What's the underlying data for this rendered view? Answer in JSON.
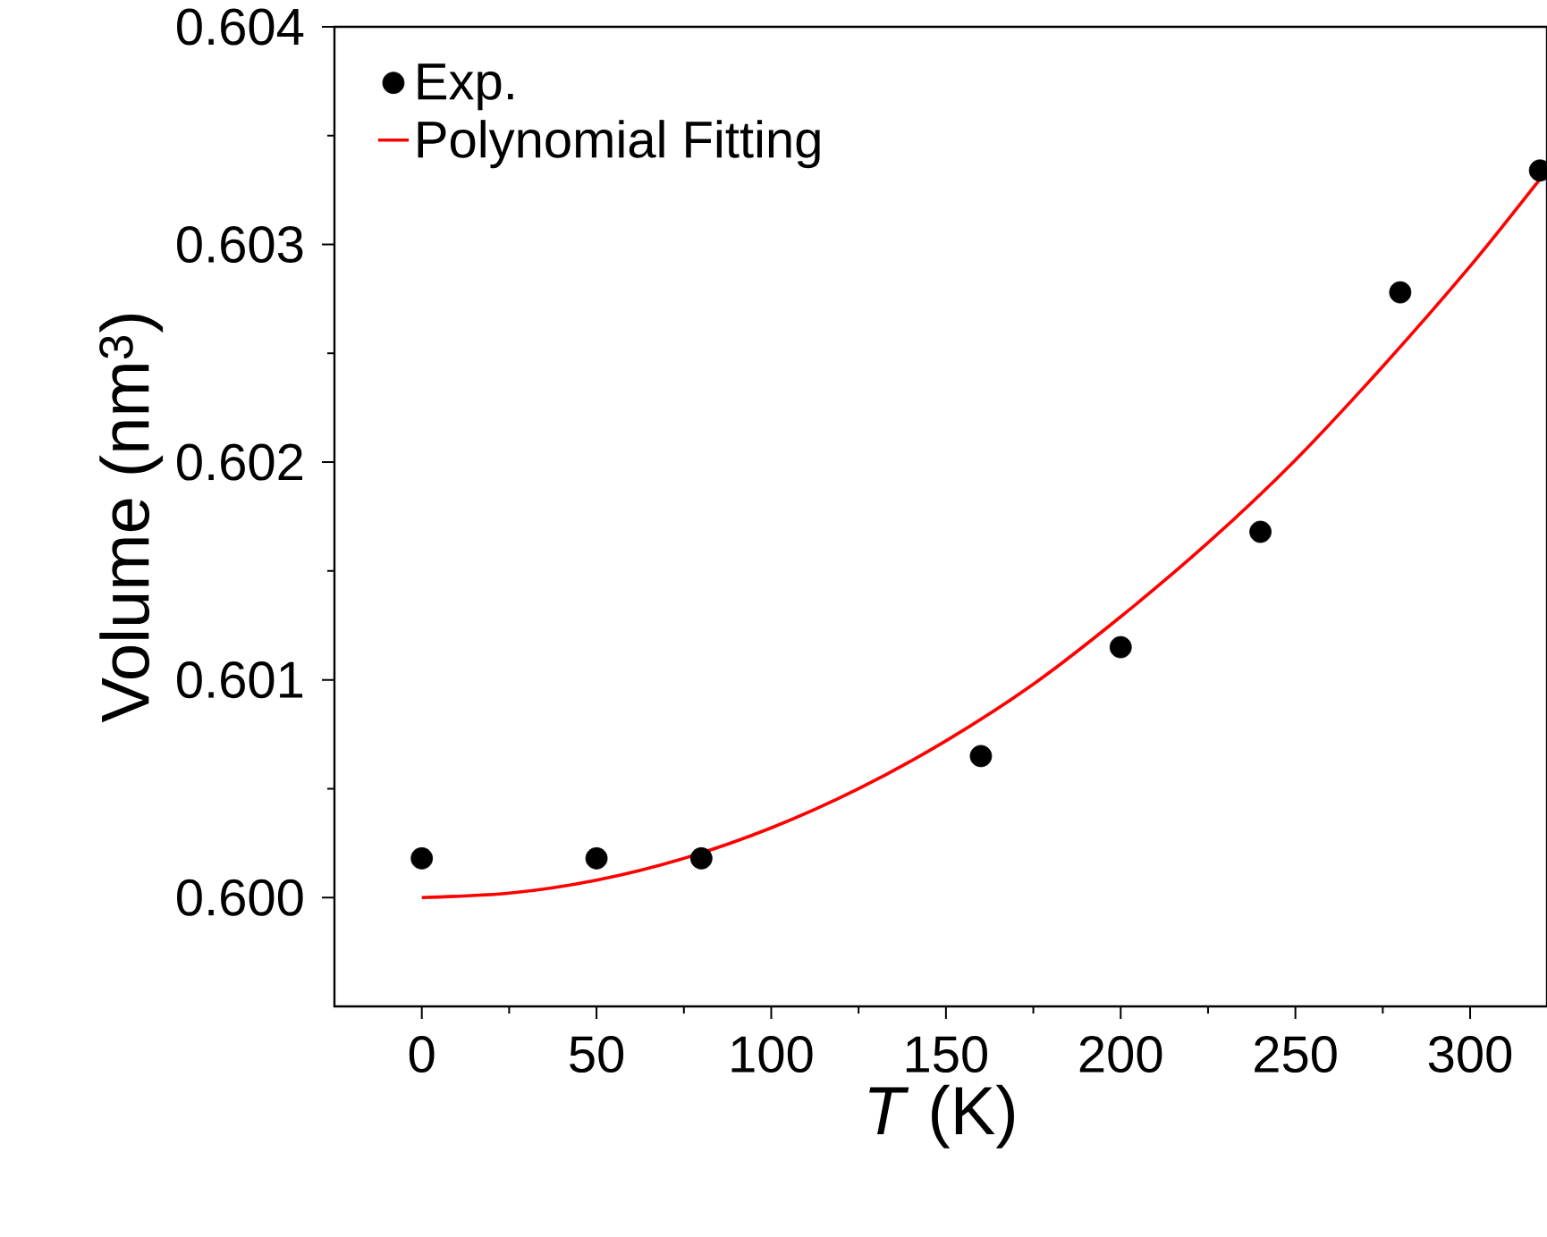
{
  "chart_data": {
    "type": "scatter",
    "xlabel": "*T* (K)",
    "ylabel": "Volume (nm$^{3}$)",
    "xlim": [
      -25,
      322
    ],
    "ylim": [
      0.5995,
      0.604
    ],
    "xticks": [
      0,
      50,
      100,
      150,
      200,
      250,
      300
    ],
    "yticks": [
      {
        "value": 0.6,
        "label": "0.600"
      },
      {
        "value": 0.601,
        "label": "0.601"
      },
      {
        "value": 0.602,
        "label": "0.602"
      },
      {
        "value": 0.603,
        "label": "0.603"
      },
      {
        "value": 0.604,
        "label": "0.604"
      }
    ],
    "legend": "top left",
    "grid": false,
    "series": [
      {
        "name": "Exp.",
        "marker": "circle",
        "color": "#000000",
        "x": [
          0,
          50,
          80,
          160,
          200,
          240,
          280,
          320
        ],
        "values": [
          0.60018,
          0.60018,
          0.60018,
          0.60065,
          0.60115,
          0.60168,
          0.60278,
          0.60334
        ]
      },
      {
        "name": "Polynomial Fitting",
        "type": "line",
        "marker": "none",
        "line_style": "solid",
        "color": "#ff0000",
        "x": [
          0,
          25,
          50,
          75,
          100,
          125,
          150,
          175,
          200,
          225,
          250,
          275,
          300,
          320
        ],
        "values": [
          0.6,
          0.60002,
          0.60008,
          0.60018,
          0.60032,
          0.6005,
          0.60072,
          0.60098,
          0.60129,
          0.60163,
          0.60201,
          0.60244,
          0.6029,
          0.6033
        ]
      }
    ]
  }
}
